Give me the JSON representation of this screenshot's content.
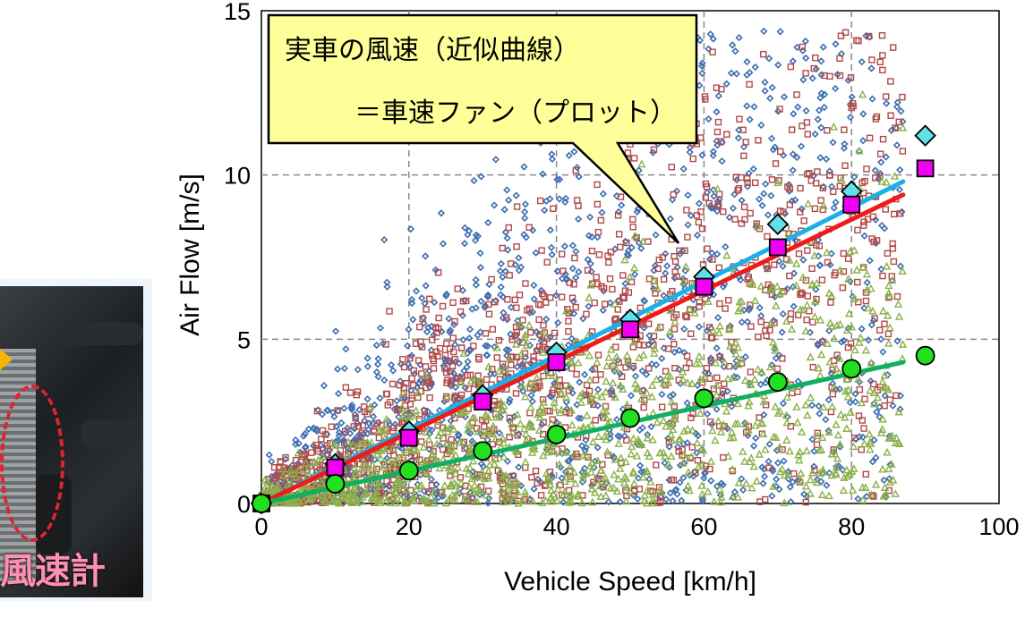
{
  "photo": {
    "caption": "風速計"
  },
  "chart_data": {
    "type": "scatter",
    "xlabel": "Vehicle Speed  [km/h]",
    "ylabel": "Air Flow  [m/s]",
    "xlim": [
      0,
      100
    ],
    "ylim": [
      0,
      15
    ],
    "xticks": [
      0,
      20,
      40,
      60,
      80,
      100
    ],
    "yticks": [
      0,
      5,
      10,
      15
    ],
    "grid": true,
    "callout": {
      "line1": "実車の風速（近似曲線）",
      "line2": "＝車速ファン（プロット）"
    },
    "colors": {
      "blue_scatter": "#3e6fb0",
      "red_scatter": "#b04a4a",
      "green_scatter": "#8cb04a",
      "cyan_fit": "#1ab0e8",
      "red_fit": "#f01a1a",
      "green_fit": "#10b060",
      "cyan_marker": "#60e0e8",
      "magenta_marker": "#f000f0",
      "green_marker": "#20e020",
      "callout_fill": "#ffff99"
    },
    "series": [
      {
        "marker": "cyan-diamond",
        "x": [
          0,
          10,
          20,
          30,
          40,
          50,
          60,
          70,
          80,
          90
        ],
        "y": [
          0,
          1.2,
          2.2,
          3.3,
          4.6,
          5.6,
          6.9,
          8.5,
          9.5,
          11.2
        ]
      },
      {
        "marker": "magenta-square",
        "x": [
          0,
          10,
          20,
          30,
          40,
          50,
          60,
          70,
          80,
          90
        ],
        "y": [
          0,
          1.1,
          2.0,
          3.1,
          4.3,
          5.3,
          6.6,
          7.8,
          9.1,
          10.2
        ]
      },
      {
        "marker": "green-circle",
        "x": [
          0,
          10,
          20,
          30,
          40,
          50,
          60,
          70,
          80,
          90
        ],
        "y": [
          0,
          0.6,
          1.0,
          1.6,
          2.1,
          2.6,
          3.2,
          3.7,
          4.1,
          4.5
        ]
      }
    ],
    "fits": [
      {
        "color": "cyan",
        "x": [
          0,
          87
        ],
        "y": [
          0,
          9.8
        ]
      },
      {
        "color": "red",
        "x": [
          0,
          87
        ],
        "y": [
          0,
          9.4
        ]
      },
      {
        "color": "green",
        "x": [
          0,
          87
        ],
        "y": [
          0,
          4.3
        ]
      }
    ],
    "clouds": [
      {
        "name": "blue",
        "slope": 0.122,
        "spread": 0.09,
        "x0": 1,
        "x1": 87,
        "n": 1400
      },
      {
        "name": "red",
        "slope": 0.11,
        "spread": 0.06,
        "x0": 0,
        "x1": 87,
        "n": 1200
      },
      {
        "name": "green",
        "slope": 0.048,
        "spread": 0.035,
        "x0": 0,
        "x1": 87,
        "n": 1100
      }
    ]
  }
}
